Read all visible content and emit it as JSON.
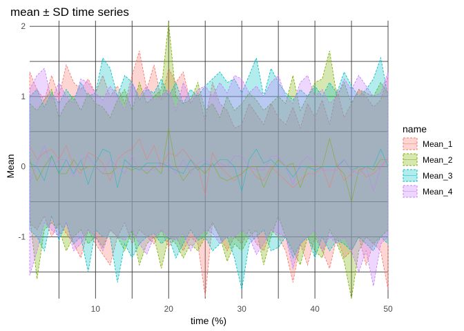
{
  "chart_data": {
    "type": "area",
    "title": "mean ± SD time series",
    "xlabel": "time (%)",
    "ylabel": "Mean",
    "xlim": [
      1,
      50
    ],
    "ylim": [
      -1.88,
      2.08
    ],
    "x_ticks": [
      10,
      20,
      30,
      40,
      50
    ],
    "y_ticks": [
      -1,
      0,
      1,
      2
    ],
    "grid": true,
    "legend_title": "name",
    "legend_position": "right",
    "x": [
      1,
      2,
      3,
      4,
      5,
      6,
      7,
      8,
      9,
      10,
      11,
      12,
      13,
      14,
      15,
      16,
      17,
      18,
      19,
      20,
      21,
      22,
      23,
      24,
      25,
      26,
      27,
      28,
      29,
      30,
      31,
      32,
      33,
      34,
      35,
      36,
      37,
      38,
      39,
      40,
      41,
      42,
      43,
      44,
      45,
      46,
      47,
      48,
      49,
      50
    ],
    "series": [
      {
        "name": "Mean_1",
        "color": "#F8766D",
        "upper": [
          1.35,
          1.1,
          0.95,
          1.3,
          1.0,
          1.45,
          1.2,
          1.1,
          1.25,
          1.05,
          1.3,
          1.0,
          1.15,
          0.9,
          1.3,
          1.65,
          1.1,
          1.45,
          0.95,
          1.4,
          1.2,
          1.35,
          0.9,
          1.05,
          0.65,
          1.2,
          0.9,
          0.8,
          0.55,
          0.6,
          0.9,
          0.75,
          0.6,
          0.9,
          0.7,
          0.6,
          0.85,
          0.55,
          0.9,
          0.7,
          0.95,
          0.6,
          1.1,
          0.7,
          0.9,
          1.1,
          1.0,
          0.85,
          0.95,
          1.3
        ],
        "lower": [
          -0.8,
          -0.9,
          -0.7,
          -1.0,
          -0.8,
          -0.95,
          -1.1,
          -1.3,
          -0.9,
          -1.1,
          -1.25,
          -1.4,
          -1.0,
          -0.8,
          -1.1,
          -0.9,
          -1.0,
          -1.1,
          -0.9,
          -1.15,
          -1.0,
          -1.2,
          -1.0,
          -1.1,
          -1.85,
          -0.8,
          -1.0,
          -1.2,
          -1.0,
          -1.1,
          -0.9,
          -1.1,
          -1.2,
          -0.9,
          -1.0,
          -1.2,
          -1.65,
          -1.1,
          -1.4,
          -1.0,
          -1.2,
          -1.45,
          -1.0,
          -1.3,
          -1.2,
          -1.0,
          -1.4,
          -1.1,
          -1.2,
          -1.75
        ],
        "mean": [
          0.3,
          0.1,
          0.2,
          0.25,
          0.1,
          0.3,
          0.0,
          -0.1,
          0.2,
          0.15,
          0.05,
          -0.2,
          0.1,
          0.2,
          0.25,
          0.4,
          0.1,
          0.3,
          0.0,
          0.2,
          0.15,
          0.25,
          0.1,
          0.0,
          -0.4,
          0.2,
          0.0,
          -0.1,
          -0.2,
          -0.1,
          0.0,
          -0.15,
          -0.2,
          0.0,
          -0.1,
          -0.2,
          -0.3,
          -0.2,
          -0.1,
          -0.1,
          0.0,
          -0.3,
          0.05,
          -0.2,
          -0.1,
          0.0,
          -0.15,
          -0.1,
          0.0,
          0.1
        ]
      },
      {
        "name": "Mean_2",
        "color": "#7CAE00",
        "upper": [
          0.9,
          0.8,
          0.95,
          1.1,
          0.7,
          0.9,
          1.0,
          0.8,
          1.05,
          0.9,
          0.85,
          0.7,
          0.95,
          1.1,
          0.8,
          1.2,
          0.9,
          1.0,
          1.1,
          2.05,
          1.0,
          0.9,
          0.95,
          1.2,
          0.8,
          0.9,
          0.7,
          1.0,
          0.8,
          0.9,
          1.05,
          0.95,
          0.8,
          0.9,
          1.0,
          0.9,
          1.3,
          0.8,
          1.0,
          1.2,
          1.25,
          1.65,
          1.0,
          1.2,
          0.9,
          1.1,
          1.05,
          1.0,
          1.2,
          1.05
        ],
        "lower": [
          -0.7,
          -1.6,
          -0.9,
          -0.8,
          -0.9,
          -1.2,
          -1.0,
          -0.9,
          -1.1,
          -1.0,
          -1.15,
          -0.9,
          -1.0,
          -1.2,
          -0.9,
          -1.4,
          -1.1,
          -1.0,
          -1.45,
          -1.0,
          -1.1,
          -1.3,
          -1.1,
          -1.2,
          -1.0,
          -0.8,
          -1.0,
          -1.35,
          -1.1,
          -1.2,
          -1.0,
          -0.9,
          -1.4,
          -1.0,
          -0.7,
          -1.0,
          -1.2,
          -1.4,
          -1.0,
          -1.2,
          -1.3,
          -0.9,
          -1.1,
          -1.35,
          -1.88,
          -1.2,
          -1.0,
          -1.1,
          -1.0,
          -0.9
        ],
        "mean": [
          0.1,
          -0.2,
          0.0,
          0.15,
          -0.1,
          -0.1,
          0.1,
          -0.05,
          0.0,
          0.0,
          -0.1,
          -0.1,
          0.0,
          0.0,
          -0.05,
          0.0,
          -0.1,
          0.0,
          -0.1,
          0.55,
          0.0,
          -0.2,
          -0.05,
          0.0,
          -0.1,
          0.05,
          -0.15,
          -0.2,
          -0.15,
          -0.1,
          0.0,
          0.0,
          -0.3,
          -0.05,
          0.1,
          0.0,
          0.05,
          -0.3,
          0.0,
          0.0,
          0.0,
          0.4,
          0.0,
          -0.1,
          -0.5,
          -0.05,
          0.0,
          -0.05,
          0.1,
          0.1
        ]
      },
      {
        "name": "Mean_3",
        "color": "#00BFC4",
        "upper": [
          1.0,
          1.1,
          0.85,
          1.05,
          0.9,
          1.1,
          0.95,
          1.2,
          1.0,
          1.05,
          1.55,
          1.4,
          1.0,
          1.3,
          1.2,
          0.95,
          1.1,
          1.05,
          1.25,
          1.0,
          1.2,
          0.9,
          1.1,
          1.0,
          1.15,
          1.25,
          1.35,
          1.2,
          1.25,
          1.05,
          1.3,
          1.55,
          1.0,
          1.4,
          1.2,
          1.05,
          0.95,
          1.1,
          1.0,
          1.15,
          1.0,
          1.2,
          1.05,
          1.35,
          1.15,
          1.0,
          1.1,
          1.25,
          1.55,
          1.0
        ],
        "lower": [
          -0.9,
          -1.0,
          -1.2,
          -0.7,
          -1.05,
          -0.8,
          -1.1,
          -1.0,
          -1.5,
          -0.9,
          -1.0,
          -1.0,
          -1.65,
          -1.1,
          -1.3,
          -1.1,
          -1.0,
          -0.95,
          -1.1,
          -1.0,
          -1.3,
          -1.1,
          -0.9,
          -1.05,
          -1.0,
          -1.2,
          -1.1,
          -1.0,
          -1.3,
          -1.75,
          -1.1,
          -1.0,
          -0.9,
          -1.2,
          -1.15,
          -1.0,
          -1.3,
          -1.1,
          -1.0,
          -1.3,
          -1.0,
          -1.2,
          -1.05,
          -1.1,
          -1.2,
          -1.0,
          -1.1,
          -1.2,
          -1.0,
          -1.1
        ],
        "mean": [
          0.05,
          0.0,
          -0.2,
          0.15,
          -0.1,
          0.1,
          -0.1,
          0.1,
          -0.25,
          0.05,
          0.25,
          0.2,
          -0.3,
          0.1,
          0.0,
          -0.05,
          0.05,
          0.05,
          0.05,
          0.0,
          -0.05,
          -0.1,
          0.1,
          -0.05,
          0.05,
          0.0,
          0.1,
          0.1,
          0.0,
          -0.35,
          0.1,
          0.25,
          0.05,
          0.1,
          0.0,
          0.0,
          -0.15,
          0.0,
          0.0,
          -0.05,
          0.0,
          0.0,
          0.0,
          0.1,
          -0.05,
          0.0,
          0.0,
          0.0,
          0.25,
          0.0
        ]
      },
      {
        "name": "Mean_4",
        "color": "#C77CFF",
        "upper": [
          1.1,
          1.3,
          1.4,
          0.95,
          1.2,
          1.0,
          0.9,
          1.25,
          1.2,
          1.05,
          0.95,
          1.15,
          1.0,
          0.8,
          1.2,
          1.0,
          1.15,
          0.95,
          1.0,
          1.1,
          0.8,
          1.2,
          0.95,
          1.1,
          1.15,
          1.0,
          1.2,
          1.05,
          1.3,
          1.25,
          1.05,
          1.15,
          1.0,
          1.2,
          1.3,
          1.0,
          0.9,
          1.2,
          1.3,
          1.0,
          1.1,
          0.9,
          1.0,
          1.25,
          1.1,
          1.3,
          1.15,
          1.0,
          1.05,
          1.35
        ],
        "lower": [
          -1.55,
          -1.2,
          -0.8,
          -0.9,
          -1.0,
          -0.8,
          -1.2,
          -1.1,
          -0.9,
          -1.0,
          -1.2,
          -0.9,
          -1.0,
          -1.05,
          -0.9,
          -1.1,
          -1.25,
          -1.0,
          -0.9,
          -1.0,
          -1.05,
          -0.95,
          -1.2,
          -1.0,
          -0.9,
          -0.95,
          -1.1,
          -1.0,
          -1.0,
          -0.9,
          -1.0,
          -1.25,
          -1.1,
          -0.9,
          -0.95,
          -1.0,
          -1.45,
          -1.1,
          -1.0,
          -0.9,
          -1.2,
          -1.0,
          -1.1,
          -1.0,
          -1.2,
          -1.5,
          -1.2,
          -1.7,
          -1.1,
          -1.0
        ],
        "mean": [
          -0.25,
          0.05,
          0.3,
          0.0,
          0.1,
          0.1,
          -0.15,
          0.1,
          0.15,
          0.0,
          -0.1,
          0.1,
          0.0,
          -0.1,
          0.15,
          -0.05,
          -0.05,
          -0.05,
          0.05,
          0.05,
          -0.1,
          0.1,
          -0.1,
          0.05,
          0.1,
          0.0,
          0.05,
          0.0,
          0.15,
          0.15,
          0.0,
          -0.05,
          -0.05,
          0.15,
          0.15,
          0.0,
          -0.25,
          0.05,
          0.15,
          0.05,
          -0.05,
          -0.05,
          -0.05,
          0.1,
          -0.05,
          -0.1,
          0.0,
          -0.35,
          0.0,
          0.15
        ]
      }
    ]
  }
}
